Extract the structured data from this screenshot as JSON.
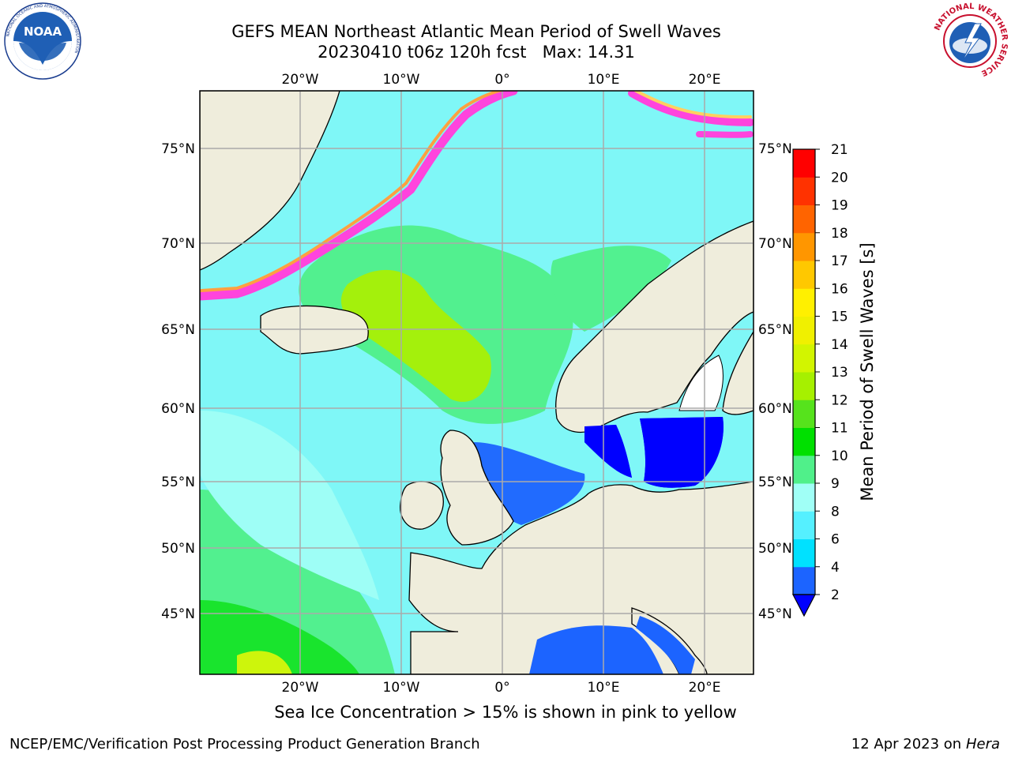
{
  "header": {
    "title_line1": "GEFS MEAN Northeast Atlantic Mean Period of Swell Waves",
    "title_line2": "20230410 t06z 120h fcst   Max: 14.31"
  },
  "logos": {
    "left": {
      "name": "NOAA",
      "ring_text": "NATIONAL OCEANIC AND ATMOSPHERIC ADMINISTRATION",
      "bottom_text": "U.S. DEPARTMENT OF COMMERCE"
    },
    "right": {
      "ring_text": "NATIONAL WEATHER SERVICE"
    }
  },
  "map": {
    "lon_labels": [
      "20°W",
      "10°W",
      "0°",
      "10°E",
      "20°E"
    ],
    "lat_labels_left": [
      "75°N",
      "70°N",
      "65°N",
      "60°N",
      "55°N",
      "50°N",
      "45°N"
    ],
    "lat_labels_right": [
      "75°N",
      "70°N",
      "65°N",
      "60°N",
      "55°N",
      "50°N",
      "45°N"
    ],
    "ocean_color": "#7ff7f7",
    "land_color": "#efeddc",
    "grid_color": "#aaaaaa"
  },
  "colorbar": {
    "label": "Mean Period of Swell Waves [s]",
    "ticks": [
      "2",
      "4",
      "6",
      "8",
      "9",
      "10",
      "11",
      "12",
      "13",
      "14",
      "15",
      "16",
      "17",
      "18",
      "19",
      "20",
      "21"
    ],
    "colors": [
      "#1c64ff",
      "#00e1ff",
      "#55f0ff",
      "#a0fff6",
      "#50f08a",
      "#00e000",
      "#56e31c",
      "#a6f000",
      "#d2f500",
      "#f0f000",
      "#fff000",
      "#ffc800",
      "#ff9600",
      "#ff6400",
      "#ff3200",
      "#ff0000"
    ],
    "extend_min_color": "#0000ff"
  },
  "note": "Sea Ice Concentration > 15% is shown in pink to yellow",
  "footer": {
    "left": "NCEP/EMC/Verification Post Processing Product Generation Branch",
    "right_date": "12 Apr 2023 on",
    "right_host": "Hera"
  }
}
